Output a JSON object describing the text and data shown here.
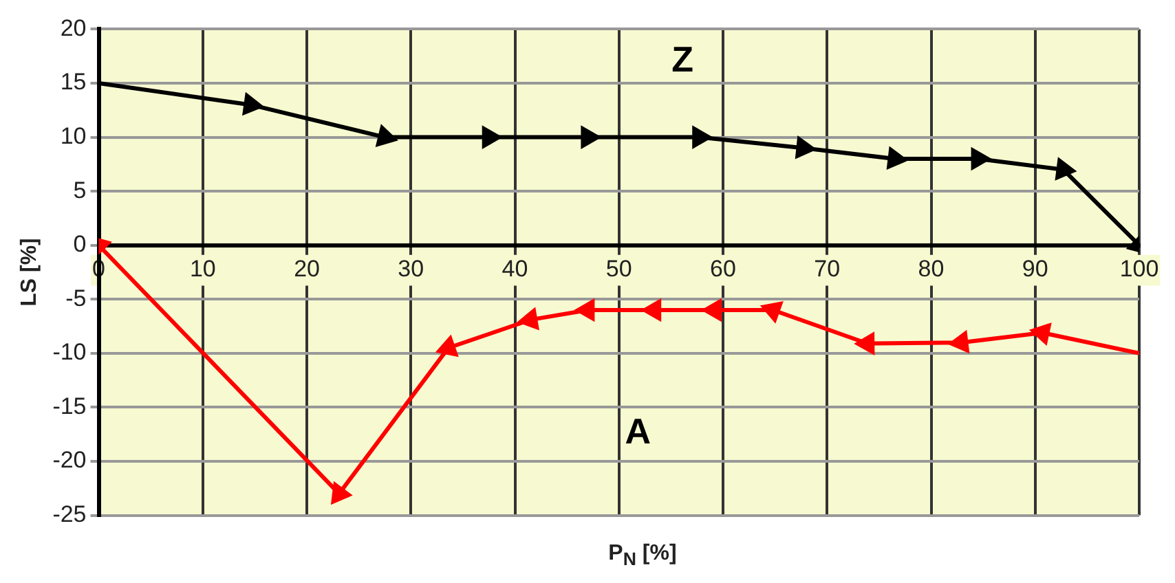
{
  "chart_data": {
    "type": "line",
    "xlabel": "P$_{N}$ [%]",
    "ylabel": "LS [%]",
    "xlim": [
      0,
      100
    ],
    "xticks": [
      0,
      10,
      20,
      30,
      40,
      50,
      60,
      70,
      80,
      90,
      100
    ],
    "ylim": [
      -25,
      20
    ],
    "yticks": [
      -25,
      -20,
      -15,
      -10,
      -5,
      0,
      5,
      10,
      15,
      20
    ],
    "grid": true,
    "marker": "triangle",
    "line_style": "solid",
    "series": [
      {
        "name": "Z",
        "color": "#000000",
        "x": [
          0,
          14.6,
          27.5,
          37.5,
          47,
          57.7,
          67.7,
          76.5,
          84.5,
          92.7,
          100
        ],
        "values": [
          15,
          13,
          10,
          10,
          10,
          10,
          9,
          8,
          8,
          7,
          0
        ]
      },
      {
        "name": "A",
        "color": "#ff0000",
        "x": [
          100,
          90.7,
          82.9,
          73.9,
          64.8,
          59.2,
          53.4,
          47,
          41.5,
          33.6,
          23.1,
          0
        ],
        "values": [
          -10,
          -8.1,
          -9,
          -9.1,
          -6,
          -6,
          -6,
          -6,
          -6.9,
          -9.5,
          -23,
          0
        ]
      }
    ]
  }
}
